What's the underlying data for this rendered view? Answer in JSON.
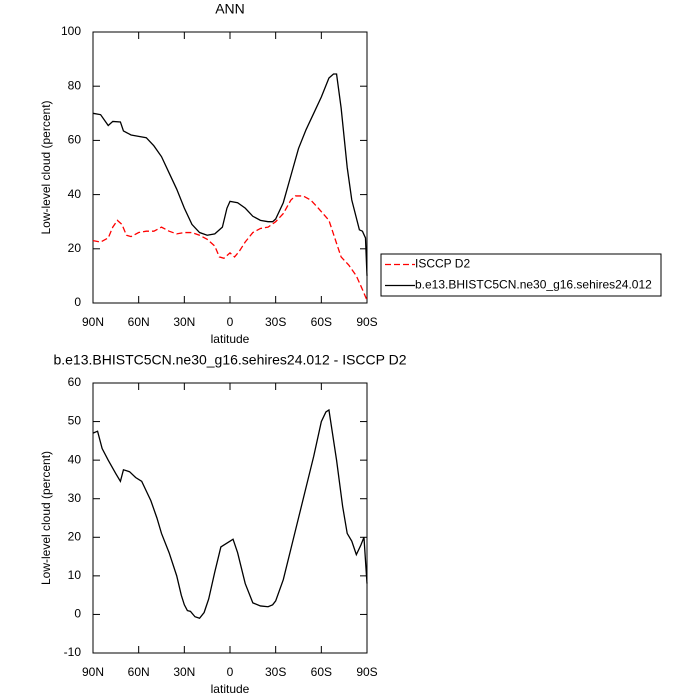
{
  "chart_data": [
    {
      "type": "line",
      "title": "ANN",
      "x_label": "latitude",
      "y_label": "Low-level cloud (percent)",
      "xlim": [
        90,
        -90
      ],
      "ylim": [
        0,
        100
      ],
      "xticks": [
        {
          "value": 90,
          "label": "90N"
        },
        {
          "value": 60,
          "label": "60N"
        },
        {
          "value": 30,
          "label": "30N"
        },
        0,
        {
          "value": -30,
          "label": "30S"
        },
        {
          "value": -60,
          "label": "60S"
        },
        {
          "value": -90,
          "label": "90S"
        }
      ],
      "yticks": [
        0,
        20,
        40,
        60,
        80,
        100
      ],
      "legend": "right",
      "series": [
        {
          "name": "ISCCP D2",
          "color": "#ff0000",
          "line_style": "dashed",
          "x": [
            90,
            85,
            80,
            77,
            74,
            71,
            68,
            65,
            60,
            55,
            50,
            45,
            40,
            35,
            30,
            25,
            20,
            15,
            10,
            7,
            4,
            0,
            -3,
            -6,
            -10,
            -15,
            -20,
            -25,
            -30,
            -35,
            -40,
            -43,
            -48,
            -53,
            -58,
            -65,
            -70,
            -73,
            -78,
            -83,
            -87,
            -90
          ],
          "values": [
            23,
            22.5,
            24,
            28,
            30.5,
            29,
            25,
            24.5,
            26,
            26.5,
            26.5,
            28,
            26.5,
            25.5,
            26,
            26,
            25,
            23.5,
            21,
            17,
            16.5,
            18.5,
            17,
            19,
            22.5,
            26,
            27.5,
            28,
            30,
            33,
            38,
            39.5,
            39.5,
            38,
            35,
            30.5,
            22,
            17,
            14,
            10,
            5,
            1
          ]
        },
        {
          "name": "b.e13.BHISTC5CN.ne30_g16.sehires24.012",
          "color": "#000000",
          "line_style": "solid",
          "x": [
            90,
            85,
            80,
            77,
            72,
            70,
            65,
            60,
            55,
            50,
            45,
            40,
            35,
            30,
            25,
            20,
            15,
            10,
            5,
            2,
            0,
            -5,
            -10,
            -15,
            -20,
            -25,
            -28,
            -30,
            -35,
            -40,
            -45,
            -50,
            -55,
            -60,
            -65,
            -68,
            -70,
            -73,
            -77,
            -80,
            -85,
            -87,
            -89,
            -90
          ],
          "values": [
            70,
            69.5,
            65.5,
            67,
            66.8,
            63.5,
            62,
            61.5,
            61,
            58,
            54,
            48,
            42,
            35,
            29,
            26,
            25,
            25.5,
            28,
            35,
            37.5,
            37,
            35,
            32,
            30.5,
            30,
            30,
            31,
            37,
            47,
            57,
            64,
            70,
            76,
            83,
            84.5,
            84.5,
            72,
            50,
            38,
            27,
            26.5,
            24,
            10
          ]
        }
      ]
    },
    {
      "type": "line",
      "title": "b.e13.BHISTC5CN.ne30_g16.sehires24.012 - ISCCP D2",
      "x_label": "latitude",
      "y_label": "Low-level cloud (percent)",
      "xlim": [
        90,
        -90
      ],
      "ylim": [
        -10,
        60
      ],
      "xticks": [
        {
          "value": 90,
          "label": "90N"
        },
        {
          "value": 60,
          "label": "60N"
        },
        {
          "value": 30,
          "label": "30N"
        },
        0,
        {
          "value": -30,
          "label": "30S"
        },
        {
          "value": -60,
          "label": "60S"
        },
        {
          "value": -90,
          "label": "90S"
        }
      ],
      "yticks": [
        -10,
        0,
        10,
        20,
        30,
        40,
        50,
        60
      ],
      "series": [
        {
          "color": "#000000",
          "line_style": "solid",
          "x": [
            90,
            87,
            84,
            80,
            75,
            72,
            70,
            66,
            62,
            58,
            55,
            52,
            48,
            45,
            40,
            35,
            32,
            30,
            28,
            26,
            23,
            20,
            17,
            14,
            10,
            6,
            0,
            -2,
            -5,
            -10,
            -15,
            -20,
            -25,
            -28,
            -30,
            -35,
            -40,
            -45,
            -50,
            -55,
            -60,
            -63,
            -65,
            -70,
            -74,
            -77,
            -80,
            -83,
            -86,
            -88,
            -90
          ],
          "values": [
            47,
            47.5,
            43,
            40,
            36.5,
            34.5,
            37.5,
            37,
            35.5,
            34.5,
            32,
            29.5,
            25,
            21,
            16,
            10,
            5,
            2.5,
            1,
            0.8,
            -0.6,
            -1,
            0.5,
            4,
            11,
            17.5,
            19,
            19.5,
            16,
            8,
            3,
            2.2,
            2,
            2.5,
            3.5,
            9,
            17,
            25,
            33,
            41,
            50,
            52.5,
            53,
            40,
            28,
            21,
            19,
            15.5,
            18,
            20,
            8
          ]
        }
      ]
    }
  ]
}
